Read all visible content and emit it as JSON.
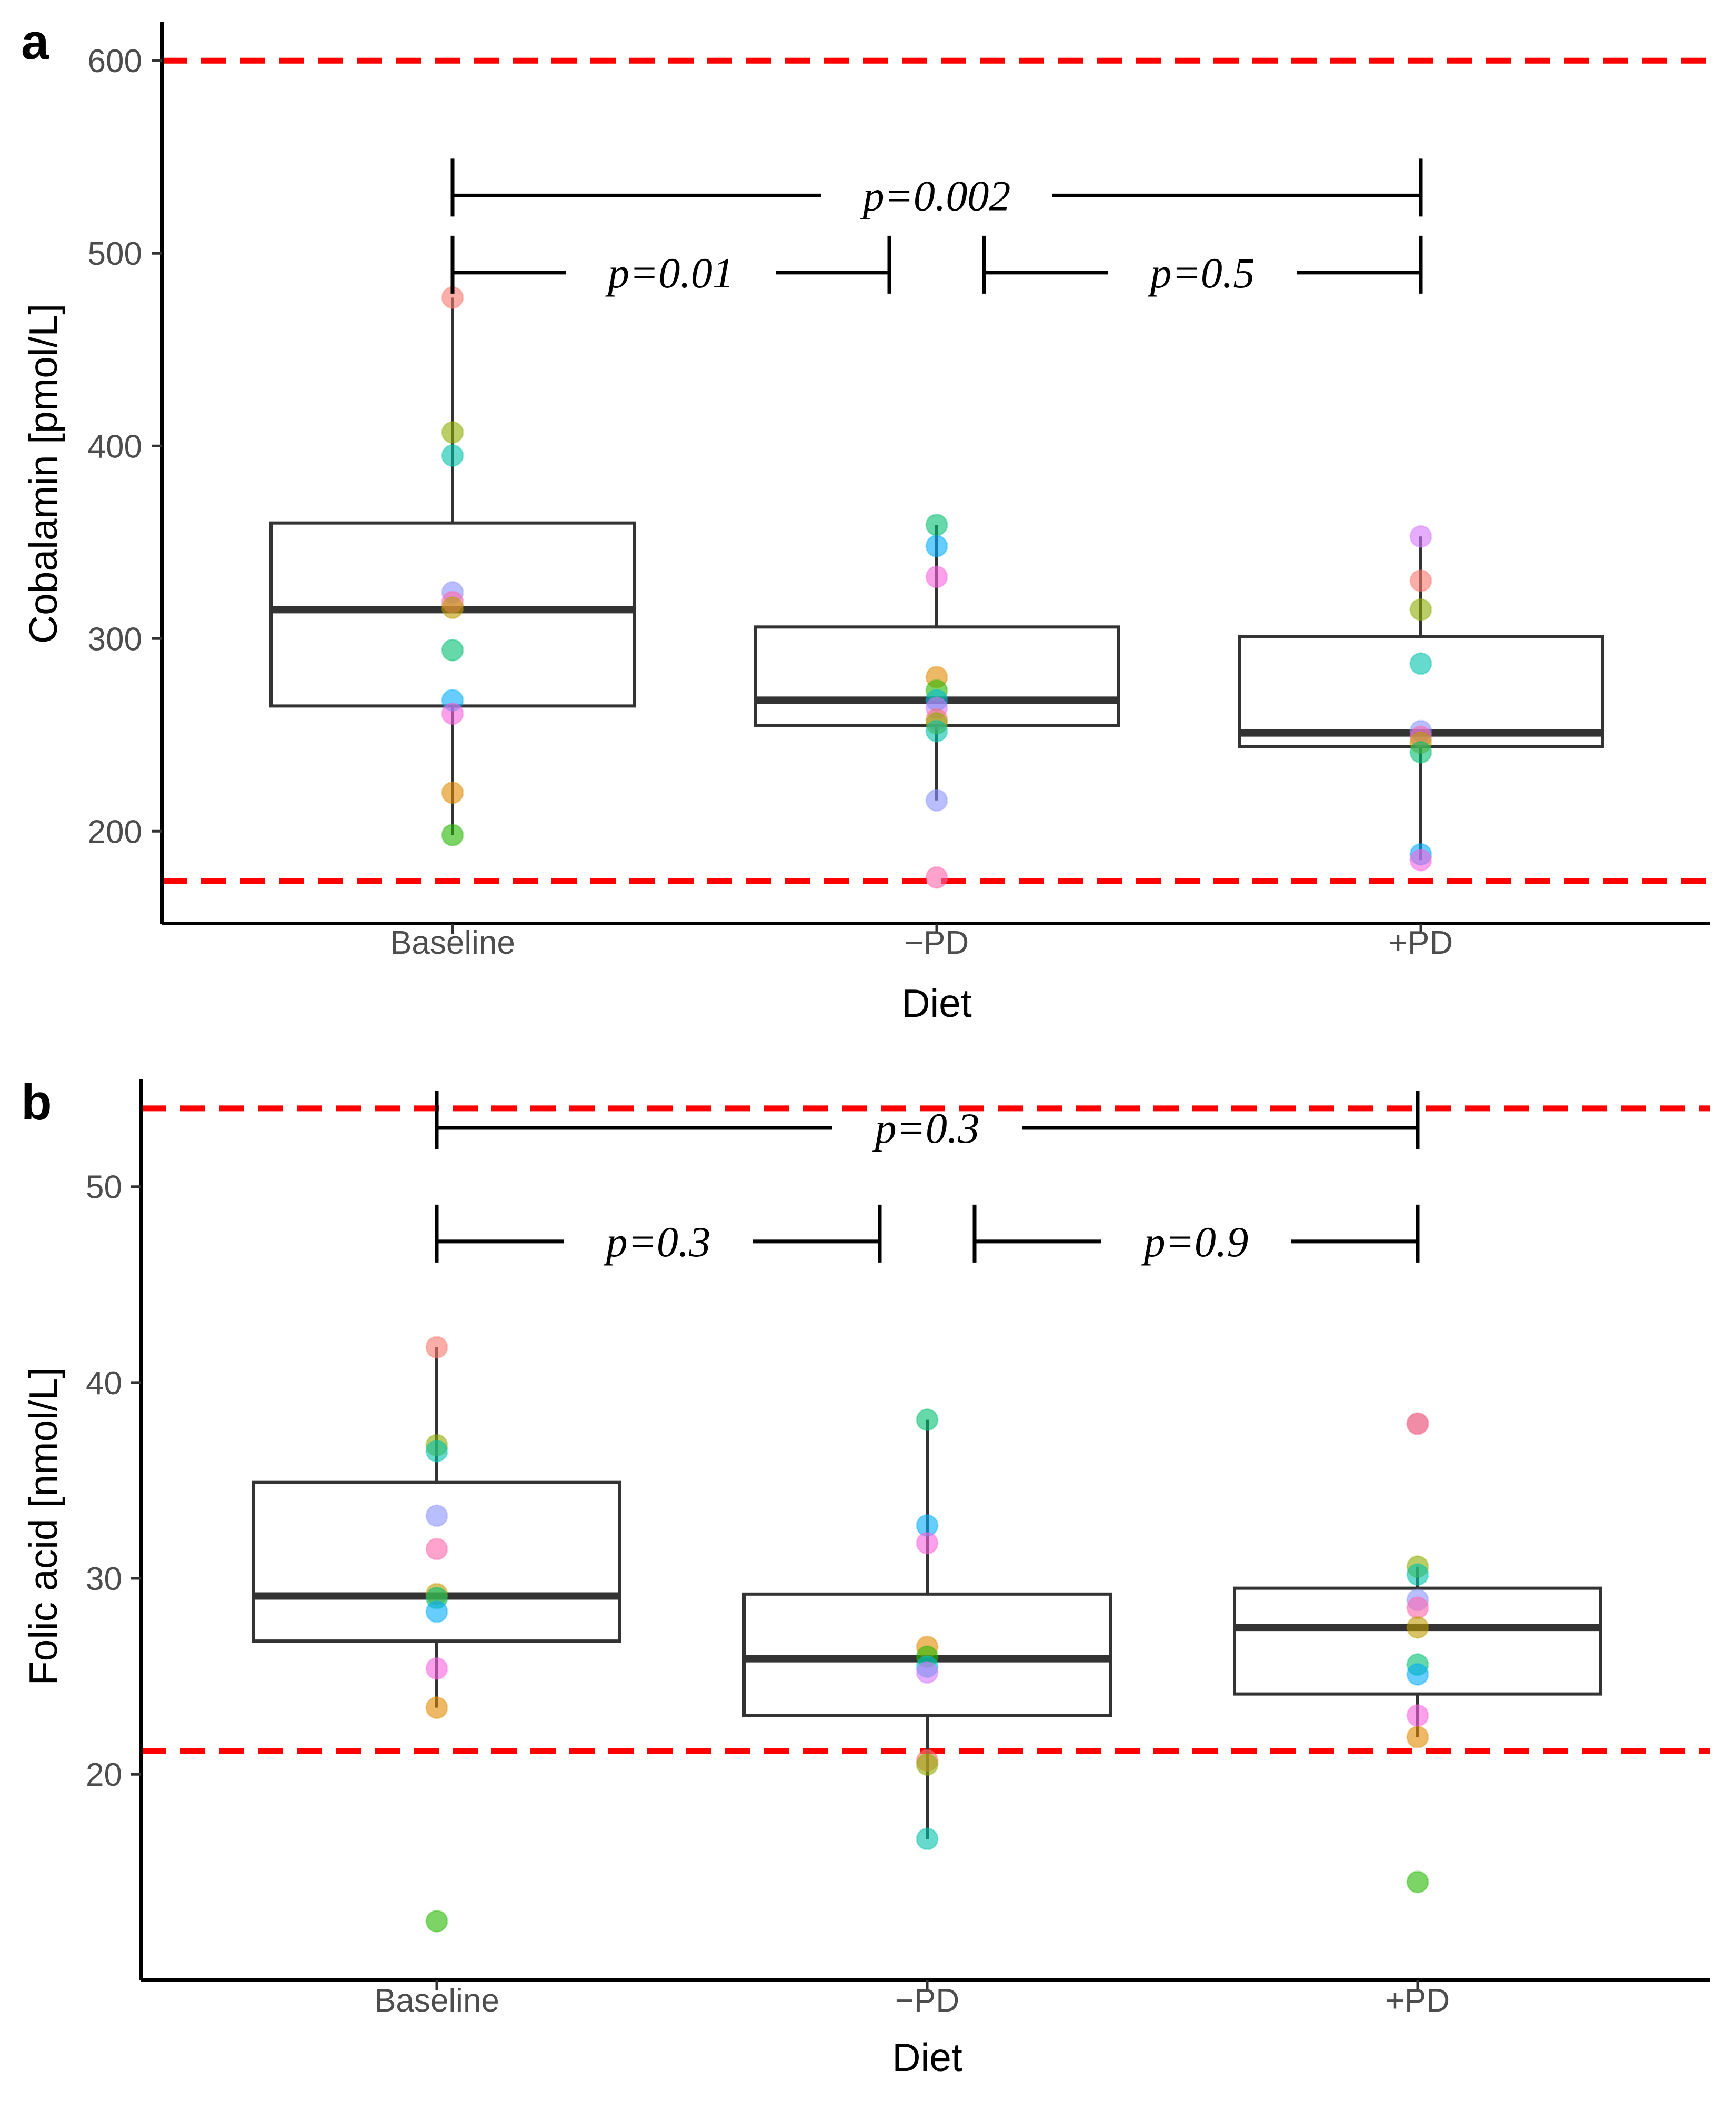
{
  "chart_data": [
    {
      "type": "box",
      "panel_label": "a",
      "title": "",
      "xlabel": "Diet",
      "ylabel": "Cobalamin [pmol/L]",
      "categories": [
        "Baseline",
        "−PD",
        "+PD"
      ],
      "ylim": [
        152,
        620
      ],
      "yticks": [
        200,
        300,
        400,
        500,
        600
      ],
      "y_tick_labels": [
        "200",
        "300",
        "400",
        "500",
        "600"
      ],
      "reference_lines": [
        {
          "value": 600,
          "color": "#ff0000",
          "style": "dashed"
        },
        {
          "value": 174,
          "color": "#ff0000",
          "style": "dashed"
        }
      ],
      "boxes": [
        {
          "category": "Baseline",
          "lower_whisker": 198,
          "q1": 265,
          "median": 315,
          "q3": 360,
          "upper_whisker": 477
        },
        {
          "category": "−PD",
          "lower_whisker": 216,
          "q1": 255,
          "median": 268,
          "q3": 306,
          "upper_whisker": 359
        },
        {
          "category": "+PD",
          "lower_whisker": 185,
          "q1": 244,
          "median": 251,
          "q3": 301,
          "upper_whisker": 353
        }
      ],
      "points": [
        {
          "category": "Baseline",
          "values": [
            477,
            407,
            395,
            324,
            319,
            316,
            294,
            268,
            261,
            220,
            198
          ]
        },
        {
          "category": "−PD",
          "values": [
            359,
            348,
            332,
            280,
            273,
            268,
            264,
            258,
            256,
            252,
            216,
            176
          ]
        },
        {
          "category": "+PD",
          "values": [
            353,
            330,
            315,
            287,
            252,
            249,
            246,
            241,
            188,
            185
          ]
        }
      ],
      "comparisons": [
        {
          "from": "Baseline",
          "to": "+PD",
          "label": "p=0.002",
          "level": 530
        },
        {
          "from": "Baseline",
          "to": "−PD",
          "label": "p=0.01",
          "level": 490
        },
        {
          "from": "−PD",
          "to": "+PD",
          "label": "p=0.5",
          "level": 490
        }
      ]
    },
    {
      "type": "box",
      "panel_label": "b",
      "title": "",
      "xlabel": "Diet",
      "ylabel": "Folic acid [nmol/L]",
      "categories": [
        "Baseline",
        "−PD",
        "+PD"
      ],
      "ylim": [
        9.5,
        55.5
      ],
      "yticks": [
        20,
        30,
        40,
        50
      ],
      "y_tick_labels": [
        "20",
        "30",
        "40",
        "50"
      ],
      "reference_lines": [
        {
          "value": 54,
          "color": "#ff0000",
          "style": "dashed"
        },
        {
          "value": 21.2,
          "color": "#ff0000",
          "style": "dashed"
        }
      ],
      "boxes": [
        {
          "category": "Baseline",
          "lower_whisker": 23.4,
          "q1": 26.8,
          "median": 29.1,
          "q3": 34.9,
          "upper_whisker": 41.8
        },
        {
          "category": "−PD",
          "lower_whisker": 16.7,
          "q1": 23.0,
          "median": 25.9,
          "q3": 29.2,
          "upper_whisker": 38.1
        },
        {
          "category": "+PD",
          "lower_whisker": 21.9,
          "q1": 24.1,
          "median": 27.5,
          "q3": 29.5,
          "upper_whisker": 30.6
        }
      ],
      "points": [
        {
          "category": "Baseline",
          "values": [
            41.8,
            36.8,
            36.5,
            33.2,
            31.5,
            29.2,
            29.0,
            28.3,
            25.4,
            23.4,
            12.5
          ]
        },
        {
          "category": "−PD",
          "values": [
            38.1,
            32.7,
            31.8,
            26.5,
            26.0,
            25.5,
            25.2,
            20.7,
            20.5,
            16.7
          ]
        },
        {
          "category": "+PD",
          "values": [
            37.9,
            37.9,
            30.6,
            30.2,
            28.9,
            28.5,
            27.5,
            25.6,
            25.1,
            23.0,
            21.9,
            14.5
          ]
        }
      ],
      "comparisons": [
        {
          "from": "Baseline",
          "to": "+PD",
          "label": "p=0.3",
          "level": 53.0
        },
        {
          "from": "Baseline",
          "to": "−PD",
          "label": "p=0.3",
          "level": 47.2
        },
        {
          "from": "−PD",
          "to": "+PD",
          "label": "p=0.9",
          "level": 47.2
        }
      ]
    }
  ],
  "colors": {
    "reference_line": "#ff0000",
    "box_stroke": "#333333",
    "axis": "#000000",
    "tick_label": "#4d4d4d",
    "point_palette": [
      "#f8766d",
      "#e18a00",
      "#be9c00",
      "#8cab00",
      "#24b700",
      "#00be70",
      "#00c1ab",
      "#00bbda",
      "#00acfc",
      "#8b93ff",
      "#d575fe",
      "#f962dd",
      "#ff65ac"
    ]
  }
}
